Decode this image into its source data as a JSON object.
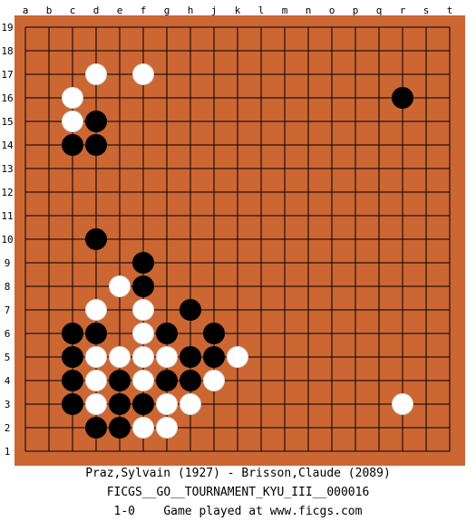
{
  "board": {
    "size": 19,
    "colors": {
      "wood": "#cc6633",
      "line": "#000000",
      "black": "#000000",
      "white": "#ffffff"
    },
    "columns": [
      "a",
      "b",
      "c",
      "d",
      "e",
      "f",
      "g",
      "h",
      "j",
      "k",
      "l",
      "m",
      "n",
      "o",
      "p",
      "q",
      "r",
      "s",
      "t"
    ],
    "rows": [
      19,
      18,
      17,
      16,
      15,
      14,
      13,
      12,
      11,
      10,
      9,
      8,
      7,
      6,
      5,
      4,
      3,
      2,
      1
    ],
    "stones": {
      "black": [
        "r16",
        "d15",
        "c14",
        "d14",
        "d10",
        "f9",
        "f8",
        "h7",
        "c6",
        "d6",
        "g6",
        "j6",
        "c5",
        "h5",
        "j5",
        "c4",
        "e4",
        "g4",
        "h4",
        "c3",
        "e3",
        "f3",
        "d2",
        "e2"
      ],
      "white": [
        "d17",
        "f17",
        "c16",
        "c15",
        "e8",
        "d7",
        "f7",
        "f6",
        "d5",
        "e5",
        "f5",
        "g5",
        "k5",
        "d4",
        "f4",
        "j4",
        "d3",
        "g3",
        "h3",
        "r3",
        "f2",
        "g2"
      ]
    }
  },
  "footer": {
    "players": "Praz,Sylvain (1927) - Brisson,Claude (2089)",
    "event": "FICGS__GO__TOURNAMENT_KYU_III__000016",
    "result_line": "1-0    Game played at www.ficgs.com"
  }
}
